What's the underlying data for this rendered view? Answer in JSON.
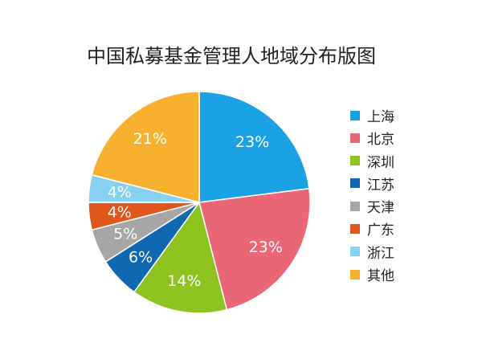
{
  "chart_data": {
    "type": "pie",
    "title": "中国私募基金管理人地域分布版图",
    "categories": [
      "上海",
      "北京",
      "深圳",
      "江苏",
      "天津",
      "广东",
      "浙江",
      "其他"
    ],
    "values": [
      23,
      23,
      14,
      6,
      5,
      4,
      4,
      21
    ],
    "labels": [
      "23%",
      "23%",
      "14%",
      "6%",
      "5%",
      "4%",
      "4%",
      "21%"
    ],
    "colors": [
      "#1aa2e4",
      "#ea6777",
      "#8dc21f",
      "#0f68b0",
      "#a6a6a6",
      "#e0561c",
      "#86d2f0",
      "#f7b12f"
    ],
    "legend_position": "right"
  }
}
